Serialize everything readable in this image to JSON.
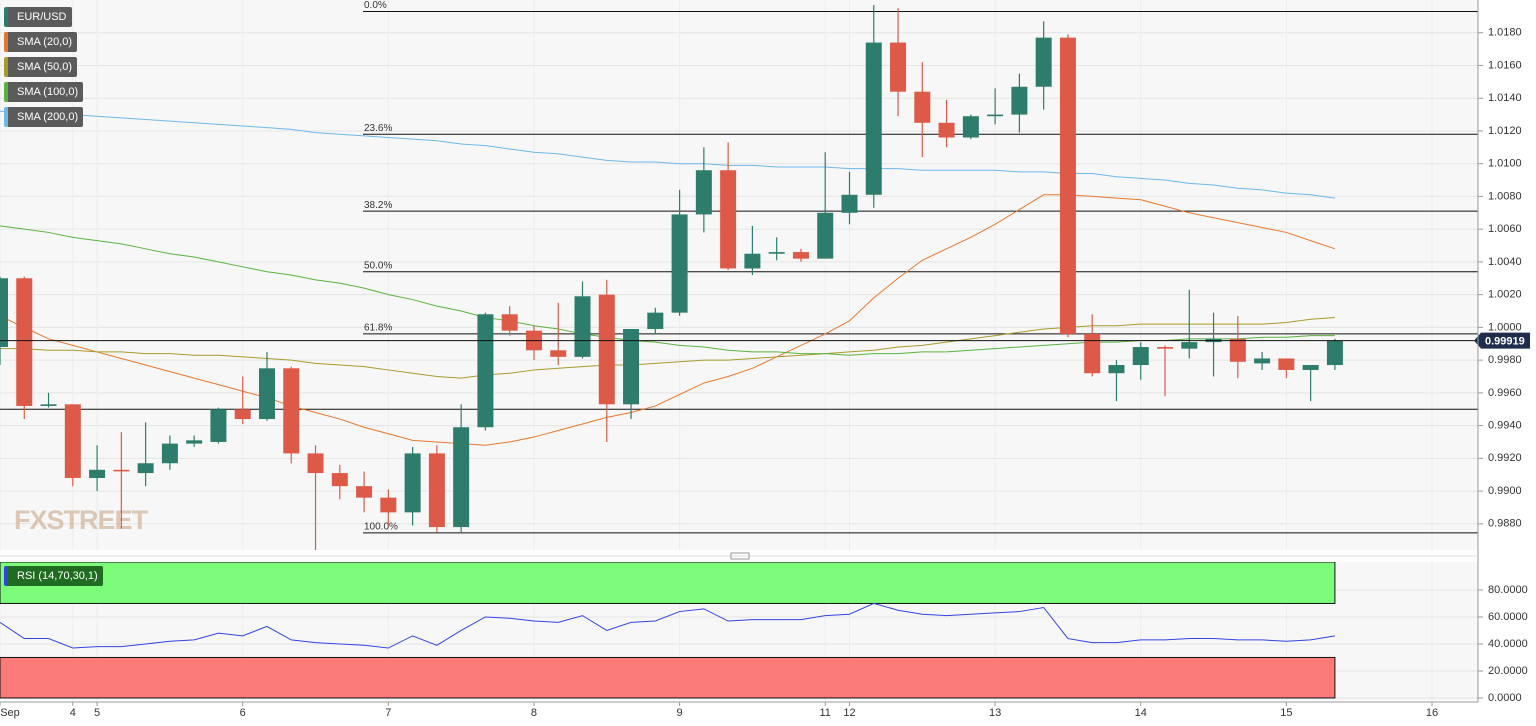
{
  "chart_data": [
    {
      "type": "candlestick",
      "title": "EUR/USD",
      "categories": [
        "Sep",
        null,
        null,
        "4",
        "5",
        null,
        null,
        null,
        null,
        null,
        "6",
        null,
        null,
        null,
        null,
        null,
        "7",
        null,
        null,
        null,
        null,
        null,
        "8",
        null,
        null,
        null,
        null,
        null,
        "9",
        null,
        null,
        null,
        null,
        null,
        "11",
        "12",
        null,
        null,
        null,
        null,
        null,
        "13",
        null,
        null,
        null,
        null,
        null,
        "14",
        null,
        null,
        null,
        null,
        null,
        "15",
        null,
        null,
        null,
        null,
        null,
        "16"
      ],
      "open": [
        0.9988,
        1.003,
        0.9952,
        0.9953,
        0.9908,
        0.9913,
        0.9911,
        0.9917,
        0.9929,
        0.993,
        0.995,
        0.9944,
        0.9975,
        0.9923,
        0.9911,
        0.9903,
        0.9896,
        0.9887,
        0.9923,
        0.9878,
        0.9939,
        1.0008,
        0.9998,
        0.9986,
        0.9982,
        1.002,
        0.9953,
        0.9999,
        1.0009,
        1.0069,
        1.0096,
        1.0036,
        1.0045,
        1.0046,
        1.0042,
        1.007,
        1.0081,
        1.0174,
        1.0144,
        1.0125,
        1.0116,
        1.0129,
        1.013,
        1.0147,
        1.0177,
        0.9996,
        0.9972,
        0.9977,
        0.9988,
        0.9987,
        0.9991,
        0.9993,
        0.9978,
        0.9981,
        0.9974,
        0.9977,
        null,
        null,
        null,
        null
      ],
      "high": [
        1.0031,
        1.0031,
        0.996,
        0.9953,
        0.9928,
        0.9936,
        0.9942,
        0.9934,
        0.9934,
        0.9951,
        0.997,
        0.9985,
        0.9976,
        0.9928,
        0.9916,
        0.9912,
        0.9901,
        0.9927,
        0.9928,
        0.9953,
        1.0009,
        1.0013,
        1.0001,
        1.0015,
        1.0028,
        1.0029,
        0.9999,
        1.0012,
        1.0084,
        1.011,
        1.0113,
        1.0062,
        1.0055,
        1.0048,
        1.0107,
        1.0095,
        1.0197,
        1.0195,
        1.0162,
        1.0139,
        1.013,
        1.0146,
        1.0155,
        1.0187,
        1.0179,
        1.0008,
        0.998,
        0.9991,
        0.9989,
        1.0023,
        1.0009,
        1.0007,
        0.9985,
        0.9981,
        0.9977,
        0.9993,
        null,
        null,
        null,
        null
      ],
      "low": [
        0.9977,
        0.9944,
        0.9951,
        0.9903,
        0.99,
        0.9877,
        0.9903,
        0.9913,
        0.9927,
        0.9929,
        0.9941,
        0.9943,
        0.9917,
        0.9864,
        0.9895,
        0.9887,
        0.9879,
        0.9879,
        0.9875,
        0.9875,
        0.9937,
        0.9995,
        0.998,
        0.9977,
        0.9981,
        0.993,
        0.9944,
        0.9996,
        1.0007,
        1.0058,
        1.0035,
        1.0032,
        1.0041,
        1.004,
        1.0042,
        1.0063,
        1.0073,
        1.0129,
        1.0104,
        1.011,
        1.0115,
        1.0124,
        1.0119,
        1.0133,
        0.9994,
        0.997,
        0.9955,
        0.9968,
        0.9958,
        0.9981,
        0.997,
        0.9969,
        0.9974,
        0.9969,
        0.9955,
        0.9974,
        null,
        null,
        null,
        null
      ],
      "close": [
        1.003,
        0.9952,
        0.9953,
        0.9908,
        0.9913,
        0.9912,
        0.9917,
        0.9929,
        0.9931,
        0.995,
        0.9944,
        0.9975,
        0.9923,
        0.9911,
        0.9903,
        0.9896,
        0.9887,
        0.9923,
        0.9878,
        0.9939,
        1.0008,
        0.9998,
        0.9986,
        0.9982,
        1.0019,
        0.9953,
        0.9999,
        1.0009,
        1.0069,
        1.0096,
        1.0036,
        1.0045,
        1.0046,
        1.0042,
        1.007,
        1.0081,
        1.0174,
        1.0144,
        1.0125,
        1.0116,
        1.0129,
        1.013,
        1.0147,
        1.0177,
        0.9996,
        0.9972,
        0.9977,
        0.9988,
        0.9987,
        0.9991,
        0.9993,
        0.9979,
        0.9981,
        0.9974,
        0.9977,
        0.99919,
        null,
        null,
        null,
        null
      ],
      "up_color": "#2e7d6c",
      "down_color": "#dd5a48",
      "series": [
        {
          "name": "SMA (20,0)",
          "color": "#e8772e",
          "values": [
            1.0007,
            1.0,
            0.9993,
            0.9989,
            0.9985,
            0.9981,
            0.9977,
            0.9973,
            0.9969,
            0.9965,
            0.9961,
            0.9957,
            0.9952,
            0.9948,
            0.9944,
            0.9939,
            0.9935,
            0.9931,
            0.993,
            0.9929,
            0.9928,
            0.993,
            0.9933,
            0.9937,
            0.9941,
            0.9945,
            0.9948,
            0.9952,
            0.9959,
            0.9966,
            0.997,
            0.9975,
            0.9982,
            0.9989,
            0.9996,
            1.0004,
            1.0018,
            1.003,
            1.0041,
            1.0048,
            1.0055,
            1.0063,
            1.0072,
            1.0081,
            1.0081,
            1.008,
            1.0079,
            1.0078,
            1.0074,
            1.007,
            1.0067,
            1.0064,
            1.0061,
            1.0058,
            1.0053,
            1.0048,
            null,
            null,
            null,
            null
          ]
        },
        {
          "name": "SMA (50,0)",
          "color": "#a99a2c",
          "values": [
            0.9987,
            0.9987,
            0.9986,
            0.9986,
            0.9985,
            0.9985,
            0.9984,
            0.9984,
            0.9983,
            0.9983,
            0.9982,
            0.9981,
            0.998,
            0.9978,
            0.9977,
            0.9976,
            0.9974,
            0.9972,
            0.997,
            0.9969,
            0.9971,
            0.9972,
            0.9974,
            0.9975,
            0.9976,
            0.9977,
            0.9977,
            0.9978,
            0.9979,
            0.998,
            0.998,
            0.9981,
            0.9982,
            0.9983,
            0.9984,
            0.9985,
            0.9986,
            0.9988,
            0.9989,
            0.9991,
            0.9993,
            0.9995,
            0.9997,
            0.9999,
            1.0,
            1.0001,
            1.0001,
            1.0002,
            1.0002,
            1.0002,
            1.0002,
            1.0002,
            1.0002,
            1.0003,
            1.0005,
            1.0006,
            null,
            null,
            null,
            null
          ]
        },
        {
          "name": "SMA (100,0)",
          "color": "#58b43e",
          "values": [
            1.0062,
            1.006,
            1.0058,
            1.0055,
            1.0053,
            1.0051,
            1.0048,
            1.0045,
            1.0043,
            1.004,
            1.0037,
            1.0034,
            1.0032,
            1.0029,
            1.0027,
            1.0024,
            1.002,
            1.0017,
            1.0013,
            1.001,
            1.0006,
            1.0004,
            1.0001,
            0.9999,
            0.9996,
            0.9994,
            0.9992,
            0.9991,
            0.9989,
            0.9988,
            0.9986,
            0.9985,
            0.9985,
            0.9984,
            0.9984,
            0.9983,
            0.9984,
            0.9984,
            0.9985,
            0.9985,
            0.9986,
            0.9987,
            0.9988,
            0.9989,
            0.999,
            0.9991,
            0.9991,
            0.9992,
            0.9992,
            0.9993,
            0.9993,
            0.9993,
            0.9994,
            0.9994,
            0.9995,
            0.9995,
            null,
            null,
            null,
            null
          ]
        },
        {
          "name": "SMA (200,0)",
          "color": "#6cb8e8",
          "values": [
            1.0132,
            1.0131,
            1.013,
            1.013,
            1.0129,
            1.0128,
            1.0127,
            1.0126,
            1.0125,
            1.0124,
            1.0123,
            1.0122,
            1.0121,
            1.0119,
            1.0118,
            1.0117,
            1.0116,
            1.0115,
            1.0114,
            1.0112,
            1.0111,
            1.0109,
            1.0107,
            1.0106,
            1.0104,
            1.0102,
            1.0101,
            1.0101,
            1.01,
            1.01,
            1.0099,
            1.0099,
            1.0098,
            1.0098,
            1.0098,
            1.0097,
            1.0097,
            1.0097,
            1.0096,
            1.0096,
            1.0096,
            1.0096,
            1.0095,
            1.0095,
            1.0094,
            1.0094,
            1.0092,
            1.0091,
            1.009,
            1.0088,
            1.0087,
            1.0085,
            1.0084,
            1.0082,
            1.0081,
            1.0079,
            null,
            null,
            null,
            null
          ]
        }
      ],
      "levels": [
        {
          "label": "0.0%",
          "value": 1.0193
        },
        {
          "label": "23.6%",
          "value": 1.0118
        },
        {
          "label": "38.2%",
          "value": 1.0071
        },
        {
          "label": "50.0%",
          "value": 1.0034
        },
        {
          "label": "61.8%",
          "value": 0.9996
        },
        {
          "label": "100.0%",
          "value": 0.98745
        },
        {
          "value": 0.995
        }
      ],
      "last_price": 0.99919,
      "watermark": "FXSTREET",
      "ylim": [
        0.9864,
        1.02
      ],
      "yticks": [
        {
          "value": 0.988,
          "label": "0.9880"
        },
        {
          "value": 0.99,
          "label": "0.9900"
        },
        {
          "value": 0.992,
          "label": "0.9920"
        },
        {
          "value": 0.994,
          "label": "0.9940"
        },
        {
          "value": 0.996,
          "label": "0.9960"
        },
        {
          "value": 0.998,
          "label": "0.9980"
        },
        {
          "value": 1.0,
          "label": "1.0000"
        },
        {
          "value": 1.002,
          "label": "1.0020"
        },
        {
          "value": 1.004,
          "label": "1.0040"
        },
        {
          "value": 1.006,
          "label": "1.0060"
        },
        {
          "value": 1.008,
          "label": "1.0080"
        },
        {
          "value": 1.01,
          "label": "1.0100"
        },
        {
          "value": 1.012,
          "label": "1.0120"
        },
        {
          "value": 1.014,
          "label": "1.0140"
        },
        {
          "value": 1.016,
          "label": "1.0160"
        },
        {
          "value": 1.018,
          "label": "1.0180"
        }
      ],
      "grid": true
    },
    {
      "type": "line",
      "series": [
        {
          "name": "RSI (14,70,30,1)",
          "color": "#2f45e0",
          "values": [
            56,
            44,
            44,
            37,
            38,
            38,
            40,
            42,
            43,
            48,
            46,
            53,
            43,
            41,
            40,
            39,
            37,
            46,
            39,
            50,
            60,
            59,
            57,
            56,
            61,
            50,
            56,
            57,
            64,
            66,
            57,
            58,
            58,
            58,
            61,
            62,
            70,
            65,
            62,
            61,
            62,
            63,
            64,
            67,
            44,
            41,
            41,
            43,
            43,
            44,
            44,
            43,
            43,
            42,
            43,
            46,
            null,
            null,
            null,
            null
          ]
        }
      ],
      "bands": [
        {
          "from": 70,
          "to": 100.7,
          "color": "#7cfc7a"
        },
        {
          "from": 0,
          "to": 30,
          "color": "#fb7b78"
        }
      ],
      "ylim": [
        -1.5,
        100.7
      ],
      "yticks": [
        {
          "value": 0,
          "label": "0.0000"
        },
        {
          "value": 20,
          "label": "20.0000"
        },
        {
          "value": 40,
          "label": "40.0000"
        },
        {
          "value": 60,
          "label": "60.0000"
        },
        {
          "value": 80,
          "label": "80.0000"
        }
      ],
      "grid": true
    }
  ]
}
